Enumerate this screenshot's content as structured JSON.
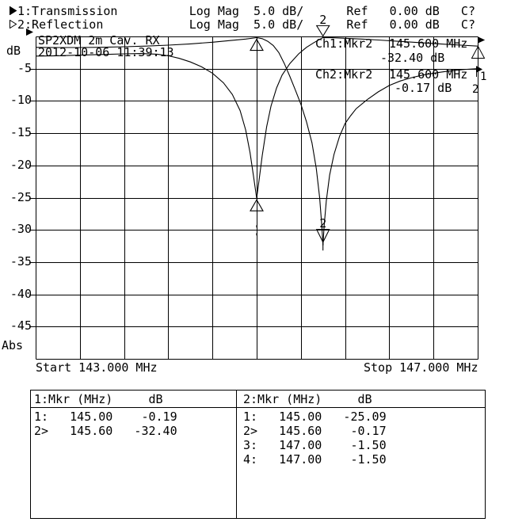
{
  "header": {
    "line1": "1:Transmission          Log Mag  5.0 dB/      Ref   0.00 dB   C?",
    "line2": "2:Reflection            Log Mag  5.0 dB/      Ref   0.00 dB   C?"
  },
  "plot": {
    "title": "SP2XDM 2m Cav. RX",
    "timestamp": "2012-10-06 11:39:13",
    "y_label": "dB",
    "y_bottom_label": "Abs",
    "start_label": "Start 143.000 MHz",
    "stop_label": "Stop 147.000 MHz",
    "readouts": {
      "ch1": {
        "label": "Ch1:Mkr2",
        "freq": "145.600 MHz",
        "level": "-32.40 dB"
      },
      "ch2": {
        "label": "Ch2:Mkr2",
        "freq": "145.600 MHz",
        "level": "-0.17 dB"
      }
    },
    "edge_labels": {
      "right_1": "1",
      "right_2": "2"
    }
  },
  "chart_data": {
    "type": "line",
    "title": "SP2XDM 2m Cav. RX",
    "timestamp": "2012-10-06 11:39:13",
    "x_axis": {
      "start_mhz": 143.0,
      "stop_mhz": 147.0,
      "unit": "MHz",
      "grid_divisions": 10
    },
    "y_axis": {
      "max_db": 0,
      "min_db": -50,
      "db_per_div": 5,
      "unit": "dB",
      "scale": "Abs",
      "ticks": [
        "-5",
        "-10",
        "-15",
        "-20",
        "-25",
        "-30",
        "-35",
        "-40",
        "-45"
      ]
    },
    "series": [
      {
        "name": "Transmission",
        "channel": 1,
        "scale_db_per_div": 5.0,
        "ref_db": 0.0,
        "points": [
          [
            143.0,
            -1.7
          ],
          [
            143.2,
            -1.72
          ],
          [
            143.4,
            -1.72
          ],
          [
            143.6,
            -1.68
          ],
          [
            143.8,
            -1.6
          ],
          [
            144.0,
            -1.5
          ],
          [
            144.2,
            -1.35
          ],
          [
            144.4,
            -1.15
          ],
          [
            144.6,
            -0.9
          ],
          [
            144.75,
            -0.65
          ],
          [
            144.9,
            -0.4
          ],
          [
            145.0,
            -0.19
          ],
          [
            145.05,
            -0.35
          ],
          [
            145.1,
            -0.75
          ],
          [
            145.15,
            -1.4
          ],
          [
            145.2,
            -2.5
          ],
          [
            145.25,
            -4.2
          ],
          [
            145.3,
            -6.2
          ],
          [
            145.35,
            -8.3
          ],
          [
            145.4,
            -10.5
          ],
          [
            145.45,
            -13.2
          ],
          [
            145.5,
            -16.5
          ],
          [
            145.54,
            -20.5
          ],
          [
            145.57,
            -25.0
          ],
          [
            145.59,
            -29.5
          ],
          [
            145.6,
            -32.4
          ],
          [
            145.61,
            -29.5
          ],
          [
            145.63,
            -25.5
          ],
          [
            145.66,
            -21.5
          ],
          [
            145.7,
            -18.3
          ],
          [
            145.75,
            -15.5
          ],
          [
            145.8,
            -13.5
          ],
          [
            145.85,
            -12.3
          ],
          [
            145.9,
            -11.2
          ],
          [
            146.0,
            -9.8
          ],
          [
            146.1,
            -8.6
          ],
          [
            146.2,
            -7.6
          ],
          [
            146.3,
            -6.9
          ],
          [
            146.4,
            -6.4
          ],
          [
            146.5,
            -6.0
          ],
          [
            146.6,
            -5.7
          ],
          [
            146.7,
            -5.45
          ],
          [
            146.8,
            -5.25
          ],
          [
            146.9,
            -5.1
          ],
          [
            147.0,
            -5.0
          ]
        ]
      },
      {
        "name": "Reflection",
        "channel": 2,
        "scale_db_per_div": 5.0,
        "ref_db": 0.0,
        "points": [
          [
            143.0,
            -3.05
          ],
          [
            143.2,
            -3.0
          ],
          [
            143.4,
            -2.9
          ],
          [
            143.6,
            -2.8
          ],
          [
            143.8,
            -2.7
          ],
          [
            143.95,
            -2.65
          ],
          [
            144.1,
            -2.75
          ],
          [
            144.2,
            -3.0
          ],
          [
            144.3,
            -3.4
          ],
          [
            144.4,
            -3.95
          ],
          [
            144.5,
            -4.7
          ],
          [
            144.6,
            -5.7
          ],
          [
            144.7,
            -7.2
          ],
          [
            144.78,
            -9.0
          ],
          [
            144.85,
            -11.5
          ],
          [
            144.9,
            -14.5
          ],
          [
            144.94,
            -18.0
          ],
          [
            144.97,
            -21.5
          ],
          [
            145.0,
            -25.09
          ],
          [
            145.02,
            -22.5
          ],
          [
            145.05,
            -18.5
          ],
          [
            145.09,
            -14.0
          ],
          [
            145.13,
            -10.8
          ],
          [
            145.18,
            -8.0
          ],
          [
            145.23,
            -6.0
          ],
          [
            145.3,
            -4.2
          ],
          [
            145.38,
            -2.7
          ],
          [
            145.45,
            -1.7
          ],
          [
            145.52,
            -0.95
          ],
          [
            145.6,
            -0.17
          ],
          [
            145.68,
            -0.2
          ],
          [
            145.8,
            -0.28
          ],
          [
            145.95,
            -0.4
          ],
          [
            146.1,
            -0.55
          ],
          [
            146.3,
            -0.78
          ],
          [
            146.5,
            -1.0
          ],
          [
            146.7,
            -1.2
          ],
          [
            146.85,
            -1.35
          ],
          [
            147.0,
            -1.5
          ]
        ]
      }
    ],
    "markers": [
      {
        "num": "1",
        "trace": 1,
        "mhz": 145.0,
        "db": -0.19,
        "style": "up"
      },
      {
        "num": "2",
        "trace": 2,
        "mhz": 145.6,
        "db": -0.17,
        "style": "down_above"
      },
      {
        "num": "1",
        "trace": 2,
        "mhz": 145.0,
        "db": -25.09,
        "style": "up_dash"
      },
      {
        "num": "2",
        "trace": 1,
        "mhz": 145.6,
        "db": -32.4,
        "style": "down_notch"
      }
    ]
  },
  "marker_table": {
    "left": {
      "header": "1:Mkr (MHz)     dB",
      "rows": [
        "1:   145.00    -0.19",
        "2>   145.60   -32.40"
      ]
    },
    "right": {
      "header": "2:Mkr (MHz)     dB",
      "rows": [
        "1:   145.00   -25.09",
        "2>   145.60    -0.17",
        "3:   147.00    -1.50",
        "4:   147.00    -1.50"
      ]
    }
  }
}
